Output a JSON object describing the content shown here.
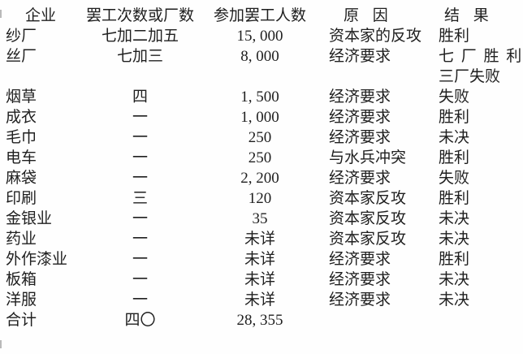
{
  "page": {
    "background_color": "#fefefe",
    "text_color": "#1f1f1f"
  },
  "table": {
    "columns": {
      "enterprise": "企业",
      "strikes": "罢工次数或厂数",
      "participants": "参加罢工人数",
      "reason": "原 因",
      "result": "结 果"
    },
    "rows": [
      {
        "enterprise": "纱厂",
        "strikes": "七加二加五",
        "participants": "15, 000",
        "reason": "资本家的反攻",
        "result": "胜利"
      },
      {
        "enterprise": "丝厂",
        "strikes": "七加三",
        "participants": "8, 000",
        "reason": "经济要求",
        "result": "七 厂 胜 利\n三厂失败"
      },
      {
        "enterprise": "烟草",
        "strikes": "四",
        "participants": "1, 500",
        "reason": "经济要求",
        "result": "失败"
      },
      {
        "enterprise": "成衣",
        "strikes": "一",
        "participants": "1, 000",
        "reason": "经济要求",
        "result": "胜利"
      },
      {
        "enterprise": "毛巾",
        "strikes": "一",
        "participants": "250",
        "reason": "经济要求",
        "result": "未决"
      },
      {
        "enterprise": "电车",
        "strikes": "一",
        "participants": "250",
        "reason": "与水兵冲突",
        "result": "胜利"
      },
      {
        "enterprise": "麻袋",
        "strikes": "一",
        "participants": "2, 200",
        "reason": "经济要求",
        "result": "失败"
      },
      {
        "enterprise": "印刷",
        "strikes": "三",
        "participants": "120",
        "reason": "资本家反攻",
        "result": "胜利"
      },
      {
        "enterprise": "金银业",
        "strikes": "一",
        "participants": "35",
        "reason": "资本家反攻",
        "result": "未决"
      },
      {
        "enterprise": "药业",
        "strikes": "一",
        "participants": "未详",
        "reason": "资本家反攻",
        "result": "未决"
      },
      {
        "enterprise": "外作漆业",
        "strikes": "一",
        "participants": "未详",
        "reason": "经济要求",
        "result": "胜利"
      },
      {
        "enterprise": "板箱",
        "strikes": "一",
        "participants": "未详",
        "reason": "经济要求",
        "result": "未决"
      },
      {
        "enterprise": "洋服",
        "strikes": "一",
        "participants": "未详",
        "reason": "经济要求",
        "result": "未决"
      },
      {
        "enterprise": "合计",
        "strikes": "四〇",
        "participants": "28, 355",
        "reason": "",
        "result": ""
      }
    ]
  }
}
